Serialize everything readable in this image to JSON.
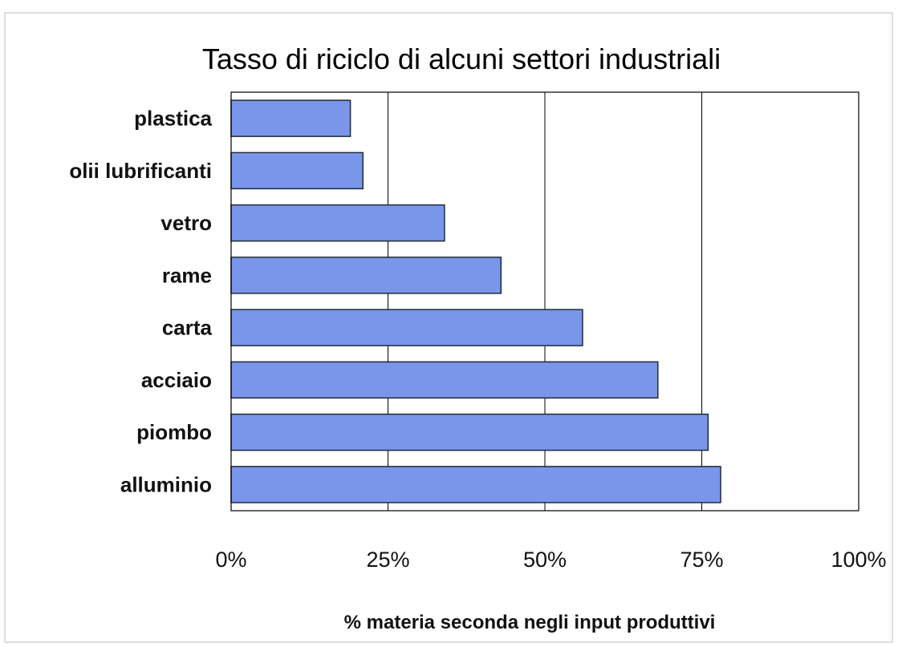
{
  "chart_data": {
    "type": "bar",
    "orientation": "horizontal",
    "title": "Tasso di riciclo di alcuni settori industriali",
    "xlabel": "% materia seconda negli input produttivi",
    "ylabel": "",
    "categories": [
      "plastica",
      "olii lubrificanti",
      "vetro",
      "rame",
      "carta",
      "acciaio",
      "piombo",
      "alluminio"
    ],
    "values": [
      19,
      21,
      34,
      43,
      56,
      68,
      76,
      78
    ],
    "value_unit": "%",
    "xlim": [
      0,
      100
    ],
    "x_ticks": [
      0,
      25,
      50,
      75,
      100
    ],
    "x_tick_labels": [
      "0%",
      "25%",
      "50%",
      "75%",
      "100%"
    ],
    "grid": "vertical",
    "legend": "none",
    "bar_color": "#7a96ea",
    "bar_edge_color": "#1f2a3a"
  }
}
